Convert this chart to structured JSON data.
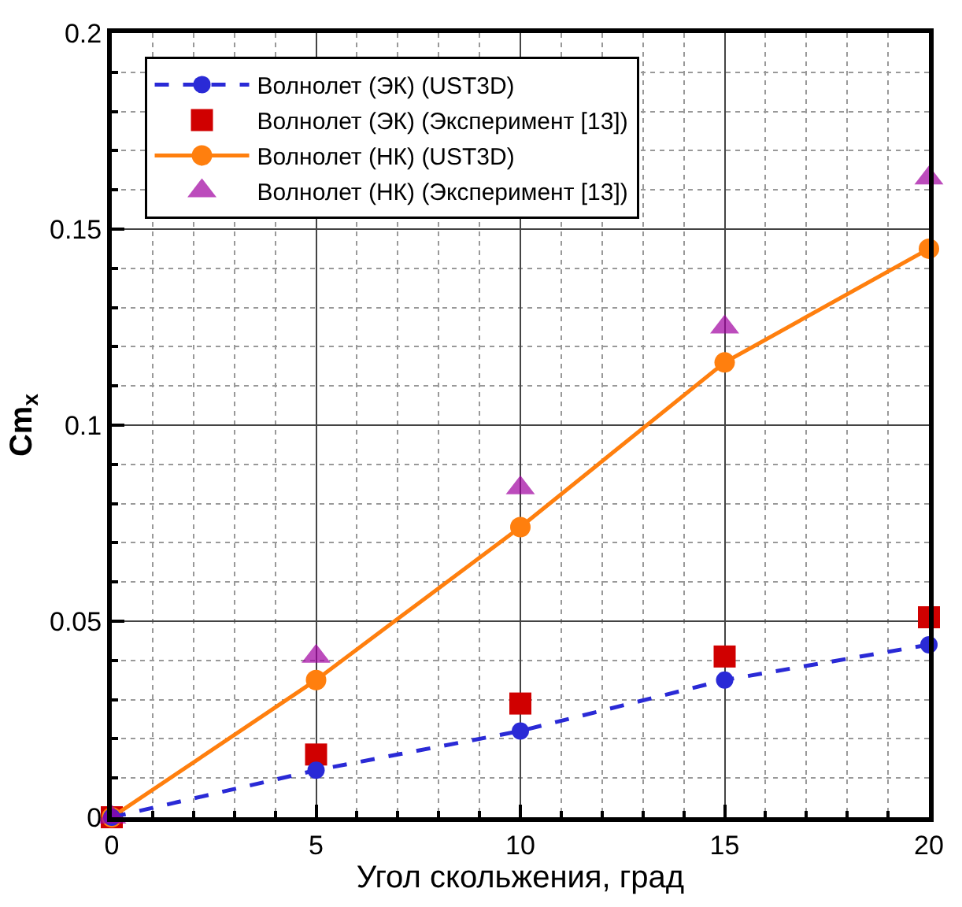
{
  "chart_data": {
    "type": "line",
    "xlabel": "Угол скольжения, град",
    "ylabel": "Cm$_{x}$",
    "x": [
      0,
      5,
      10,
      15,
      20
    ],
    "series": [
      {
        "name": "Волнолет (ЭК) (UST3D)",
        "color": "#2a2ad6",
        "line_style": "dashed",
        "marker": "circle",
        "values": [
          0,
          0.012,
          0.022,
          0.035,
          0.044
        ]
      },
      {
        "name": "Волнолет (ЭК) (Эксперимент [13])",
        "type": "scatter",
        "color": "#d00000",
        "marker": "square",
        "values": [
          0,
          0.016,
          0.029,
          0.041,
          0.051
        ]
      },
      {
        "name": "Волнолет (НК) (UST3D)",
        "color": "#ff7f0e",
        "line_style": "solid",
        "marker": "circle",
        "values": [
          0,
          0.035,
          0.074,
          0.116,
          0.145
        ]
      },
      {
        "name": "Волнолет (НК) (Эксперимент [13])",
        "type": "scatter",
        "color": "#a000a0",
        "marker": "triangle",
        "values": [
          0,
          0.041,
          0.084,
          0.125,
          0.163
        ]
      }
    ],
    "xlim": [
      0,
      20
    ],
    "xticks": [
      0,
      5,
      10,
      15,
      20
    ],
    "ylim": [
      0,
      0.2
    ],
    "yticks": [
      0,
      0.05,
      0.1,
      0.15,
      0.2
    ],
    "grid": true,
    "legend": "top left"
  }
}
